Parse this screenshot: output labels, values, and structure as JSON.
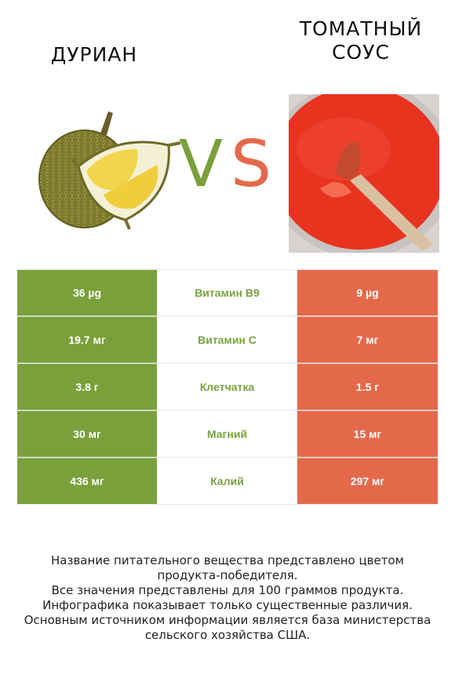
{
  "header": {
    "left_title_line1": "ДУРИАН",
    "right_title_line1": "ТОМАТНЫЙ",
    "right_title_line2": "СОУС",
    "vs_v": "V",
    "vs_s": "S"
  },
  "colors": {
    "left_accent": "#7aa03b",
    "right_accent": "#e4694b",
    "nutrient_label": "#79a23c"
  },
  "images": {
    "left": "durian-image",
    "right": "tomato-sauce-image"
  },
  "rows": [
    {
      "left": "36 µg",
      "nutrient": "Витамин B9",
      "right": "9 µg"
    },
    {
      "left": "19.7 мг",
      "nutrient": "Витамин C",
      "right": "7 мг"
    },
    {
      "left": "3.8 г",
      "nutrient": "Клетчатка",
      "right": "1.5 г"
    },
    {
      "left": "30 мг",
      "nutrient": "Магний",
      "right": "15 мг"
    },
    {
      "left": "436 мг",
      "nutrient": "Калий",
      "right": "297 мг"
    }
  ],
  "footer": {
    "line1": "Название питательного вещества представлено цветом",
    "line2": "продукта-победителя.",
    "line3": "Все значения представлены для 100 граммов продукта.",
    "line4": "Инфографика показывает только существенные различия.",
    "line5": "Основным источником информации является база министерства",
    "line6": "сельского хозяйства США."
  }
}
